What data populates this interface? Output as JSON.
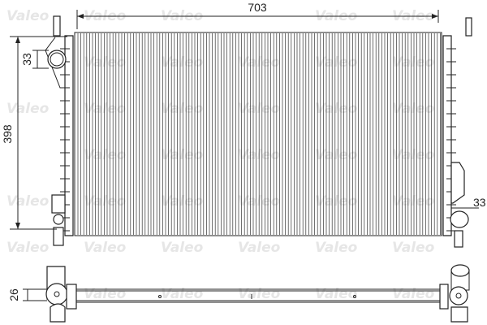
{
  "watermark": "Valeo",
  "dimensions": {
    "width": "703",
    "height": "398",
    "inlet_diameter": "33",
    "outlet_diameter": "33",
    "depth": "26"
  },
  "colors": {
    "line": "#222222",
    "watermark": "#e6e6e6"
  }
}
